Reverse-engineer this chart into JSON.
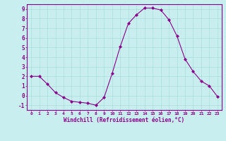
{
  "x": [
    0,
    1,
    2,
    3,
    4,
    5,
    6,
    7,
    8,
    9,
    10,
    11,
    12,
    13,
    14,
    15,
    16,
    17,
    18,
    19,
    20,
    21,
    22,
    23
  ],
  "y": [
    2.0,
    2.0,
    1.2,
    0.3,
    -0.2,
    -0.6,
    -0.7,
    -0.8,
    -1.0,
    -0.2,
    2.3,
    5.1,
    7.5,
    8.4,
    9.1,
    9.1,
    8.9,
    7.9,
    6.2,
    3.8,
    2.5,
    1.5,
    1.0,
    -0.1
  ],
  "line_color": "#8B008B",
  "marker": "D",
  "marker_size": 2,
  "bg_color": "#c8eef0",
  "grid_color": "#aadddd",
  "xlabel": "Windchill (Refroidissement éolien,°C)",
  "xlim": [
    -0.5,
    23.5
  ],
  "ylim": [
    -1.5,
    9.5
  ],
  "yticks": [
    -1,
    0,
    1,
    2,
    3,
    4,
    5,
    6,
    7,
    8,
    9
  ],
  "xticks": [
    0,
    1,
    2,
    3,
    4,
    5,
    6,
    7,
    8,
    9,
    10,
    11,
    12,
    13,
    14,
    15,
    16,
    17,
    18,
    19,
    20,
    21,
    22,
    23
  ],
  "axis_color": "#8B008B",
  "tick_color": "#8B008B"
}
